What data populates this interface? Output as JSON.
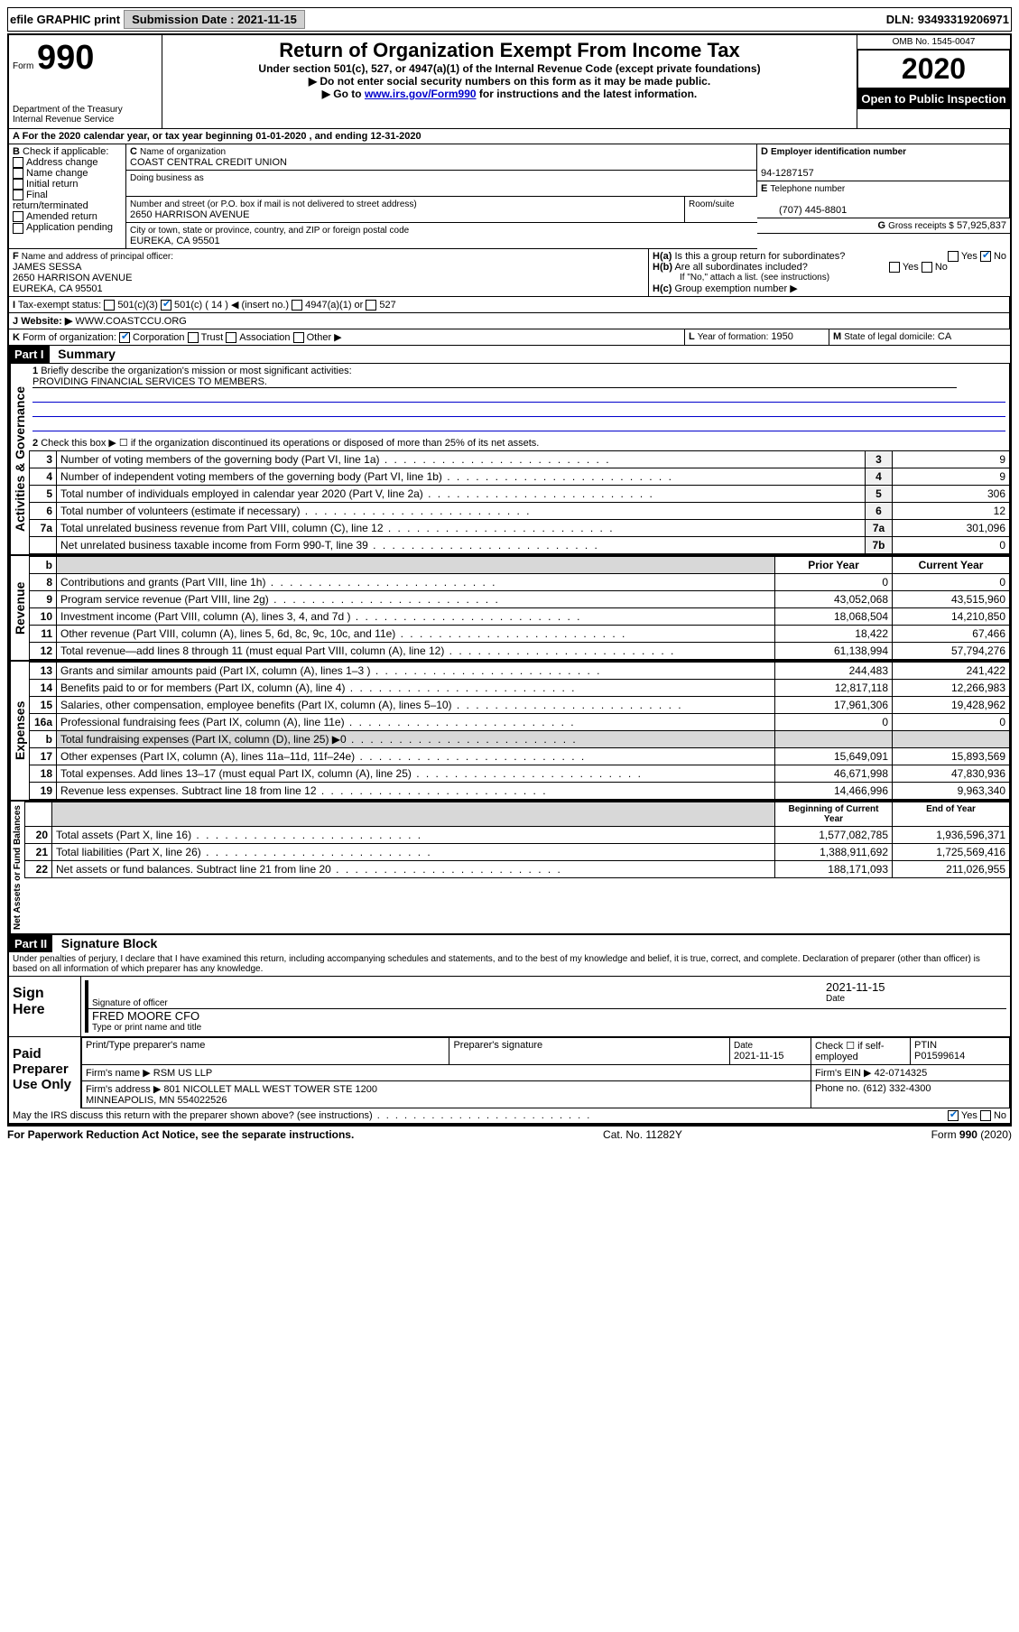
{
  "topbar": {
    "efile": "efile GRAPHIC print",
    "submission_label": "Submission Date :",
    "submission_date": "2021-11-15",
    "dln_label": "DLN:",
    "dln": "93493319206971"
  },
  "header": {
    "form_word": "Form",
    "form_no": "990",
    "dept1": "Department of the Treasury",
    "dept2": "Internal Revenue Service",
    "title": "Return of Organization Exempt From Income Tax",
    "subtitle": "Under section 501(c), 527, or 4947(a)(1) of the Internal Revenue Code (except private foundations)",
    "note1": "Do not enter social security numbers on this form as it may be made public.",
    "note2_pre": "Go to ",
    "note2_link": "www.irs.gov/Form990",
    "note2_post": " for instructions and the latest information.",
    "omb": "OMB No. 1545-0047",
    "year": "2020",
    "open": "Open to Public Inspection"
  },
  "A": {
    "text": "For the 2020 calendar year, or tax year beginning 01-01-2020   , and ending 12-31-2020"
  },
  "B": {
    "label": "Check if applicable:",
    "opts": [
      "Address change",
      "Name change",
      "Initial return",
      "Final return/terminated",
      "Amended return",
      "Application pending"
    ]
  },
  "C": {
    "name_label": "Name of organization",
    "name": "COAST CENTRAL CREDIT UNION",
    "dba_label": "Doing business as",
    "addr_label": "Number and street (or P.O. box if mail is not delivered to street address)",
    "room_label": "Room/suite",
    "addr": "2650 HARRISON AVENUE",
    "city_label": "City or town, state or province, country, and ZIP or foreign postal code",
    "city": "EUREKA, CA  95501"
  },
  "D": {
    "label": "Employer identification number",
    "val": "94-1287157"
  },
  "E": {
    "label": "Telephone number",
    "val": "(707) 445-8801"
  },
  "G": {
    "label": "Gross receipts $",
    "val": "57,925,837"
  },
  "F": {
    "label": "Name and address of principal officer:",
    "name": "JAMES SESSA",
    "addr1": "2650 HARRISON AVENUE",
    "addr2": "EUREKA, CA  95501"
  },
  "H": {
    "a": "Is this a group return for subordinates?",
    "b": "Are all subordinates included?",
    "b_note": "If \"No,\" attach a list. (see instructions)",
    "c": "Group exemption number ▶"
  },
  "I": {
    "label": "Tax-exempt status:",
    "opts": [
      "501(c)(3)",
      "501(c) ( 14 ) ◀ (insert no.)",
      "4947(a)(1) or",
      "527"
    ]
  },
  "J": {
    "label": "Website: ▶",
    "val": "WWW.COASTCCU.ORG"
  },
  "K": {
    "label": "Form of organization:",
    "opts": [
      "Corporation",
      "Trust",
      "Association",
      "Other ▶"
    ]
  },
  "L": {
    "label": "Year of formation:",
    "val": "1950"
  },
  "M": {
    "label": "State of legal domicile:",
    "val": "CA"
  },
  "part1": {
    "hdr": "Part I",
    "title": "Summary",
    "l1_label": "Briefly describe the organization's mission or most significant activities:",
    "l1_val": "PROVIDING FINANCIAL SERVICES TO MEMBERS.",
    "l2": "Check this box ▶ ☐  if the organization discontinued its operations or disposed of more than 25% of its net assets.",
    "vlabels": {
      "gov": "Activities & Governance",
      "rev": "Revenue",
      "exp": "Expenses",
      "net": "Net Assets or Fund Balances"
    },
    "prior_hdr": "Prior Year",
    "current_hdr": "Current Year",
    "boy_hdr": "Beginning of Current Year",
    "eoy_hdr": "End of Year",
    "rows_gov": [
      {
        "n": "3",
        "t": "Number of voting members of the governing body (Part VI, line 1a)",
        "k": "3",
        "v": "9"
      },
      {
        "n": "4",
        "t": "Number of independent voting members of the governing body (Part VI, line 1b)",
        "k": "4",
        "v": "9"
      },
      {
        "n": "5",
        "t": "Total number of individuals employed in calendar year 2020 (Part V, line 2a)",
        "k": "5",
        "v": "306"
      },
      {
        "n": "6",
        "t": "Total number of volunteers (estimate if necessary)",
        "k": "6",
        "v": "12"
      },
      {
        "n": "7a",
        "t": "Total unrelated business revenue from Part VIII, column (C), line 12",
        "k": "7a",
        "v": "301,096"
      },
      {
        "n": "",
        "t": "Net unrelated business taxable income from Form 990-T, line 39",
        "k": "7b",
        "v": "0"
      }
    ],
    "rows_rev": [
      {
        "n": "8",
        "t": "Contributions and grants (Part VIII, line 1h)",
        "p": "0",
        "c": "0"
      },
      {
        "n": "9",
        "t": "Program service revenue (Part VIII, line 2g)",
        "p": "43,052,068",
        "c": "43,515,960"
      },
      {
        "n": "10",
        "t": "Investment income (Part VIII, column (A), lines 3, 4, and 7d )",
        "p": "18,068,504",
        "c": "14,210,850"
      },
      {
        "n": "11",
        "t": "Other revenue (Part VIII, column (A), lines 5, 6d, 8c, 9c, 10c, and 11e)",
        "p": "18,422",
        "c": "67,466"
      },
      {
        "n": "12",
        "t": "Total revenue—add lines 8 through 11 (must equal Part VIII, column (A), line 12)",
        "p": "61,138,994",
        "c": "57,794,276"
      }
    ],
    "rows_exp": [
      {
        "n": "13",
        "t": "Grants and similar amounts paid (Part IX, column (A), lines 1–3 )",
        "p": "244,483",
        "c": "241,422"
      },
      {
        "n": "14",
        "t": "Benefits paid to or for members (Part IX, column (A), line 4)",
        "p": "12,817,118",
        "c": "12,266,983"
      },
      {
        "n": "15",
        "t": "Salaries, other compensation, employee benefits (Part IX, column (A), lines 5–10)",
        "p": "17,961,306",
        "c": "19,428,962"
      },
      {
        "n": "16a",
        "t": "Professional fundraising fees (Part IX, column (A), line 11e)",
        "p": "0",
        "c": "0"
      },
      {
        "n": "b",
        "t": "Total fundraising expenses (Part IX, column (D), line 25) ▶0",
        "p": "",
        "c": "",
        "shade": true
      },
      {
        "n": "17",
        "t": "Other expenses (Part IX, column (A), lines 11a–11d, 11f–24e)",
        "p": "15,649,091",
        "c": "15,893,569"
      },
      {
        "n": "18",
        "t": "Total expenses. Add lines 13–17 (must equal Part IX, column (A), line 25)",
        "p": "46,671,998",
        "c": "47,830,936"
      },
      {
        "n": "19",
        "t": "Revenue less expenses. Subtract line 18 from line 12",
        "p": "14,466,996",
        "c": "9,963,340"
      }
    ],
    "rows_net": [
      {
        "n": "20",
        "t": "Total assets (Part X, line 16)",
        "p": "1,577,082,785",
        "c": "1,936,596,371"
      },
      {
        "n": "21",
        "t": "Total liabilities (Part X, line 26)",
        "p": "1,388,911,692",
        "c": "1,725,569,416"
      },
      {
        "n": "22",
        "t": "Net assets or fund balances. Subtract line 21 from line 20",
        "p": "188,171,093",
        "c": "211,026,955"
      }
    ]
  },
  "part2": {
    "hdr": "Part II",
    "title": "Signature Block",
    "decl": "Under penalties of perjury, I declare that I have examined this return, including accompanying schedules and statements, and to the best of my knowledge and belief, it is true, correct, and complete. Declaration of preparer (other than officer) is based on all information of which preparer has any knowledge.",
    "sign_here": "Sign Here",
    "sig_officer": "Signature of officer",
    "date_lbl": "Date",
    "date_val": "2021-11-15",
    "officer_name": "FRED MOORE  CFO",
    "type_name": "Type or print name and title",
    "paid": "Paid Preparer Use Only",
    "prep_name_lbl": "Print/Type preparer's name",
    "prep_sig_lbl": "Preparer's signature",
    "prep_date": "2021-11-15",
    "check_se": "Check ☐ if self-employed",
    "ptin_lbl": "PTIN",
    "ptin": "P01599614",
    "firm_name_lbl": "Firm's name   ▶",
    "firm_name": "RSM US LLP",
    "firm_ein_lbl": "Firm's EIN ▶",
    "firm_ein": "42-0714325",
    "firm_addr_lbl": "Firm's address ▶",
    "firm_addr": "801 NICOLLET MALL WEST TOWER STE 1200\nMINNEAPOLIS, MN  554022526",
    "phone_lbl": "Phone no.",
    "phone": "(612) 332-4300",
    "discuss": "May the IRS discuss this return with the preparer shown above? (see instructions)"
  },
  "footer": {
    "left": "For Paperwork Reduction Act Notice, see the separate instructions.",
    "mid": "Cat. No. 11282Y",
    "right": "Form 990 (2020)"
  }
}
